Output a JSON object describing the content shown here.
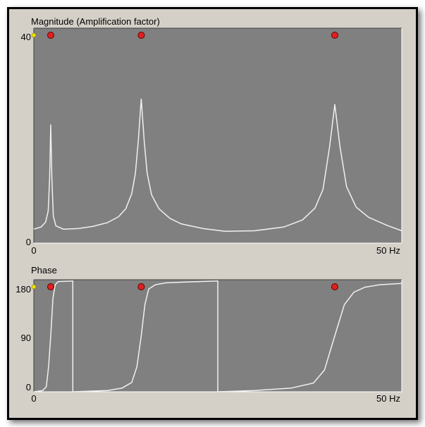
{
  "chart_data": [
    {
      "type": "line",
      "title": "Magnitude (Amplification factor)",
      "xlabel": "",
      "ylabel": "",
      "xlim": [
        0,
        50
      ],
      "ylim": [
        0,
        40
      ],
      "x_tick_labels": [
        "0",
        "50 Hz"
      ],
      "y_tick_labels": [
        "40",
        "0"
      ],
      "markers": {
        "color": "#e02020",
        "x": [
          2.3,
          14.6,
          40.9
        ]
      },
      "series": [
        {
          "color": "#f0f0f0",
          "points": [
            [
              0,
              2.6
            ],
            [
              1.0,
              3.0
            ],
            [
              1.6,
              3.9
            ],
            [
              1.95,
              6.0
            ],
            [
              2.15,
              12.0
            ],
            [
              2.3,
              22.0
            ],
            [
              2.45,
              12.0
            ],
            [
              2.65,
              5.0
            ],
            [
              3.0,
              3.2
            ],
            [
              4.0,
              2.6
            ],
            [
              6.0,
              2.7
            ],
            [
              8.0,
              3.1
            ],
            [
              10.0,
              3.8
            ],
            [
              11.5,
              4.9
            ],
            [
              12.5,
              6.4
            ],
            [
              13.3,
              9.2
            ],
            [
              13.8,
              13.0
            ],
            [
              14.2,
              19.0
            ],
            [
              14.6,
              26.8
            ],
            [
              15.0,
              19.0
            ],
            [
              15.4,
              13.0
            ],
            [
              16.0,
              9.0
            ],
            [
              17.0,
              6.4
            ],
            [
              18.5,
              4.6
            ],
            [
              20.0,
              3.6
            ],
            [
              23.0,
              2.7
            ],
            [
              26.0,
              2.2
            ],
            [
              30.0,
              2.3
            ],
            [
              34.0,
              3.0
            ],
            [
              36.5,
              4.3
            ],
            [
              38.2,
              6.5
            ],
            [
              39.3,
              10.0
            ],
            [
              40.2,
              18.0
            ],
            [
              40.9,
              25.8
            ],
            [
              41.6,
              18.0
            ],
            [
              42.5,
              10.5
            ],
            [
              43.8,
              6.7
            ],
            [
              45.5,
              4.8
            ],
            [
              48.0,
              3.3
            ],
            [
              50.0,
              2.3
            ]
          ]
        }
      ]
    },
    {
      "type": "line",
      "title": "Phase",
      "xlabel": "",
      "ylabel": "",
      "xlim": [
        0,
        50
      ],
      "ylim": [
        0,
        180
      ],
      "x_tick_labels": [
        "0",
        "50 Hz"
      ],
      "y_tick_labels": [
        "180",
        "90",
        "0"
      ],
      "markers": {
        "color": "#e02020",
        "x": [
          2.3,
          14.6,
          40.9
        ]
      },
      "series": [
        {
          "color": "#f0f0f0",
          "points": [
            [
              0,
              0
            ],
            [
              1.2,
              2
            ],
            [
              1.7,
              8
            ],
            [
              2.0,
              40
            ],
            [
              2.3,
              90
            ],
            [
              2.6,
              150
            ],
            [
              2.9,
              172
            ],
            [
              3.3,
              177
            ],
            [
              5.3,
              178
            ],
            [
              5.3,
              0
            ],
            [
              10.0,
              2
            ],
            [
              12.0,
              6
            ],
            [
              13.3,
              15
            ],
            [
              14.0,
              40
            ],
            [
              14.6,
              90
            ],
            [
              15.1,
              140
            ],
            [
              15.6,
              165
            ],
            [
              16.5,
              172
            ],
            [
              18.0,
              175
            ],
            [
              20.0,
              176
            ],
            [
              25.0,
              178
            ],
            [
              25.0,
              0
            ],
            [
              30.0,
              2
            ],
            [
              35.0,
              6
            ],
            [
              38.0,
              14
            ],
            [
              39.5,
              35
            ],
            [
              40.9,
              90
            ],
            [
              42.2,
              140
            ],
            [
              43.5,
              160
            ],
            [
              45.0,
              168
            ],
            [
              47.0,
              172
            ],
            [
              50.0,
              174
            ]
          ]
        }
      ]
    }
  ]
}
